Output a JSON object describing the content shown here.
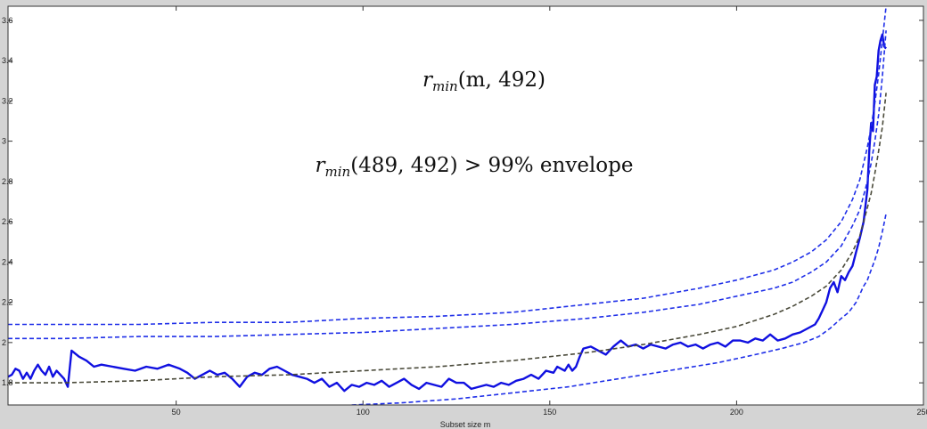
{
  "chart_data": {
    "type": "line",
    "title": "",
    "xlabel": "Subset size m",
    "ylabel": "",
    "xlim": [
      5,
      250
    ],
    "ylim": [
      1.69,
      3.67
    ],
    "xticks": [
      50,
      100,
      150,
      200,
      250
    ],
    "yticks": [
      1.8,
      2,
      2.2,
      2.4,
      2.6,
      2.8,
      3,
      3.2,
      3.4,
      3.6
    ],
    "xtick_labels": [
      "50",
      "100",
      "150",
      "200",
      "250"
    ],
    "ytick_labels": [
      "1.8",
      "2",
      "2.2",
      "2.4",
      "2.6",
      "2.8",
      "3",
      "3.2",
      "3.4",
      "3.6"
    ],
    "annotations": [
      {
        "base": "r",
        "sub": "min",
        "args": "(m, 492)"
      },
      {
        "base": "r",
        "sub": "min",
        "args": "(489, 492) > 99% envelope"
      }
    ],
    "colors": {
      "observed": "#1010e0",
      "envelope": "#1f2fe8",
      "median": "#4a4a3a",
      "plot_bg": "#ffffff",
      "frame_bg": "#d4d4d4"
    },
    "series": [
      {
        "style": "solid",
        "x": [
          5,
          6,
          7,
          8,
          9,
          10,
          11,
          12,
          13,
          14,
          15,
          16,
          17,
          18,
          19,
          20,
          21,
          22,
          24,
          26,
          28,
          30,
          33,
          36,
          39,
          42,
          45,
          48,
          51,
          53,
          55,
          57,
          59,
          61,
          63,
          65,
          67,
          69,
          71,
          73,
          75,
          77,
          79,
          81,
          83,
          85,
          87,
          89,
          91,
          93,
          95,
          97,
          99,
          101,
          103,
          105,
          107,
          109,
          111,
          113,
          115,
          117,
          119,
          121,
          123,
          125,
          127,
          129,
          131,
          133,
          135,
          137,
          139,
          141,
          143,
          145,
          147,
          149,
          151,
          152,
          153,
          154,
          155,
          156,
          157,
          158,
          159,
          161,
          163,
          165,
          167,
          169,
          171,
          173,
          175,
          177,
          179,
          181,
          183,
          185,
          187,
          189,
          191,
          193,
          195,
          197,
          199,
          201,
          203,
          205,
          207,
          209,
          211,
          213,
          215,
          217,
          219,
          221,
          222,
          223,
          224,
          225,
          226,
          227,
          228,
          229,
          230,
          231,
          232,
          233,
          234,
          235,
          235.5,
          236,
          236.5,
          237,
          237.5,
          238,
          238.5,
          239,
          239.5,
          240
        ],
        "values": [
          1.83,
          1.84,
          1.87,
          1.86,
          1.82,
          1.85,
          1.82,
          1.86,
          1.89,
          1.86,
          1.84,
          1.88,
          1.83,
          1.86,
          1.84,
          1.82,
          1.78,
          1.96,
          1.93,
          1.91,
          1.88,
          1.89,
          1.88,
          1.87,
          1.86,
          1.88,
          1.87,
          1.89,
          1.87,
          1.85,
          1.82,
          1.84,
          1.86,
          1.84,
          1.85,
          1.82,
          1.78,
          1.83,
          1.85,
          1.84,
          1.87,
          1.88,
          1.86,
          1.84,
          1.83,
          1.82,
          1.8,
          1.82,
          1.78,
          1.8,
          1.76,
          1.79,
          1.78,
          1.8,
          1.79,
          1.81,
          1.78,
          1.8,
          1.82,
          1.79,
          1.77,
          1.8,
          1.79,
          1.78,
          1.82,
          1.8,
          1.8,
          1.77,
          1.78,
          1.79,
          1.78,
          1.8,
          1.79,
          1.81,
          1.82,
          1.84,
          1.82,
          1.86,
          1.85,
          1.88,
          1.87,
          1.86,
          1.89,
          1.86,
          1.88,
          1.93,
          1.97,
          1.98,
          1.96,
          1.94,
          1.98,
          2.01,
          1.98,
          1.99,
          1.97,
          1.99,
          1.98,
          1.97,
          1.99,
          2,
          1.98,
          1.99,
          1.97,
          1.99,
          2,
          1.98,
          2.01,
          2.01,
          2,
          2.02,
          2.01,
          2.04,
          2.01,
          2.02,
          2.04,
          2.05,
          2.07,
          2.09,
          2.12,
          2.16,
          2.2,
          2.27,
          2.3,
          2.25,
          2.33,
          2.31,
          2.35,
          2.38,
          2.45,
          2.52,
          2.6,
          2.76,
          2.95,
          3.09,
          3.05,
          3.28,
          3.32,
          3.45,
          3.5,
          3.53,
          3.47,
          3.46
        ]
      },
      {
        "style": "dashed",
        "x": [
          5,
          20,
          40,
          60,
          80,
          100,
          120,
          140,
          160,
          175,
          190,
          200,
          210,
          215,
          220,
          224,
          228,
          231,
          233,
          235,
          236,
          237,
          238,
          239,
          240
        ],
        "values": [
          2.09,
          2.09,
          2.09,
          2.1,
          2.1,
          2.12,
          2.13,
          2.15,
          2.19,
          2.22,
          2.27,
          2.31,
          2.36,
          2.4,
          2.45,
          2.51,
          2.6,
          2.71,
          2.81,
          2.97,
          3.07,
          3.19,
          3.33,
          3.5,
          3.67
        ]
      },
      {
        "style": "dashed",
        "x": [
          5,
          20,
          40,
          60,
          80,
          100,
          120,
          140,
          160,
          175,
          190,
          200,
          210,
          215,
          220,
          224,
          228,
          231,
          233,
          235,
          236,
          237,
          238,
          239,
          240
        ],
        "values": [
          2.02,
          2.02,
          2.03,
          2.03,
          2.04,
          2.05,
          2.07,
          2.09,
          2.12,
          2.15,
          2.19,
          2.23,
          2.27,
          2.3,
          2.35,
          2.4,
          2.48,
          2.58,
          2.66,
          2.8,
          2.89,
          3,
          3.13,
          3.32,
          3.55
        ]
      },
      {
        "style": "dashed",
        "x": [
          5,
          20,
          40,
          60,
          80,
          100,
          120,
          140,
          160,
          175,
          190,
          200,
          210,
          215,
          220,
          224,
          228,
          231,
          233,
          235,
          236,
          237,
          238,
          239,
          240
        ],
        "values": [
          1.8,
          1.8,
          1.81,
          1.83,
          1.84,
          1.86,
          1.88,
          1.91,
          1.95,
          1.99,
          2.04,
          2.08,
          2.14,
          2.18,
          2.23,
          2.28,
          2.36,
          2.45,
          2.53,
          2.67,
          2.74,
          2.84,
          2.95,
          3.07,
          3.24
        ]
      },
      {
        "style": "dashed",
        "x": [
          97,
          110,
          125,
          140,
          155,
          165,
          175,
          185,
          195,
          205,
          212,
          218,
          222,
          225,
          228,
          230,
          232,
          234,
          235,
          236,
          237,
          238,
          239,
          240
        ],
        "values": [
          1.69,
          1.7,
          1.72,
          1.75,
          1.78,
          1.81,
          1.84,
          1.87,
          1.9,
          1.94,
          1.97,
          2.0,
          2.03,
          2.07,
          2.12,
          2.15,
          2.2,
          2.28,
          2.31,
          2.36,
          2.41,
          2.47,
          2.55,
          2.64
        ]
      }
    ]
  }
}
